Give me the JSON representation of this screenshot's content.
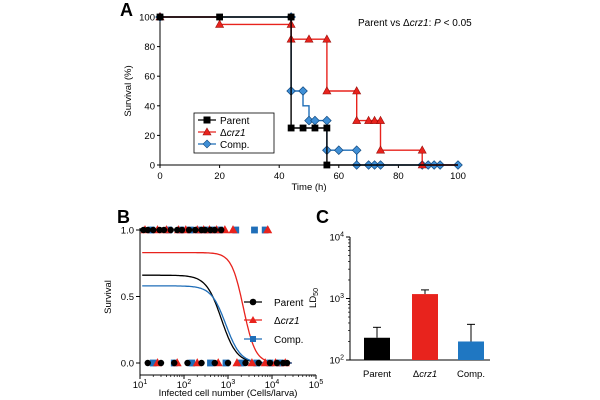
{
  "colors": {
    "parent": "#000000",
    "dcrz1": "#e8231d",
    "comp": "#1f6eb8",
    "comp_bar": "#1f77c2"
  },
  "chart_data": [
    {
      "panel": "A",
      "type": "line",
      "step": true,
      "title": "Parent vs Δcrz1: P < 0.05",
      "annotation": {
        "prefix": "Parent vs Δ",
        "italic": "crz1",
        "mid": ": ",
        "pitalic": "P",
        "suffix": " < 0.05"
      },
      "xlabel": "Time (h)",
      "ylabel": "Survival (%)",
      "xlim": [
        0,
        100
      ],
      "ylim": [
        0,
        100
      ],
      "xticks": [
        0,
        20,
        40,
        60,
        80,
        100
      ],
      "yticks": [
        0,
        20,
        40,
        60,
        80,
        100
      ],
      "legend_position": "lower-left",
      "series": [
        {
          "name": "Parent",
          "key": "parent",
          "marker": "square",
          "steps": [
            [
              0,
              100
            ],
            [
              44,
              100
            ],
            [
              44,
              25
            ],
            [
              56,
              25
            ],
            [
              56,
              0
            ],
            [
              100,
              0
            ]
          ],
          "points": [
            [
              0,
              100
            ],
            [
              20,
              100
            ],
            [
              44,
              100
            ],
            [
              44,
              25
            ],
            [
              48,
              25
            ],
            [
              52,
              25
            ],
            [
              56,
              25
            ],
            [
              56,
              0
            ]
          ]
        },
        {
          "name": "Δcrz1",
          "prefix": "Δ",
          "italic": "crz1",
          "key": "dcrz1",
          "marker": "triangle",
          "steps": [
            [
              0,
              100
            ],
            [
              20,
              100
            ],
            [
              20,
              95
            ],
            [
              44,
              95
            ],
            [
              44,
              85
            ],
            [
              56,
              85
            ],
            [
              56,
              50
            ],
            [
              66,
              50
            ],
            [
              66,
              30
            ],
            [
              74,
              30
            ],
            [
              74,
              10
            ],
            [
              88,
              10
            ],
            [
              88,
              0
            ],
            [
              100,
              0
            ]
          ],
          "points": [
            [
              0,
              100
            ],
            [
              20,
              95
            ],
            [
              44,
              95
            ],
            [
              44,
              85
            ],
            [
              50,
              85
            ],
            [
              56,
              85
            ],
            [
              56,
              50
            ],
            [
              66,
              50
            ],
            [
              66,
              30
            ],
            [
              70,
              30
            ],
            [
              72,
              30
            ],
            [
              74,
              30
            ],
            [
              74,
              10
            ],
            [
              88,
              10
            ],
            [
              88,
              0
            ]
          ]
        },
        {
          "name": "Comp.",
          "key": "comp",
          "marker": "diamond",
          "steps": [
            [
              0,
              100
            ],
            [
              44,
              100
            ],
            [
              44,
              50
            ],
            [
              48,
              50
            ],
            [
              48,
              40
            ],
            [
              50,
              40
            ],
            [
              50,
              30
            ],
            [
              56,
              30
            ],
            [
              56,
              10
            ],
            [
              66,
              10
            ],
            [
              66,
              0
            ],
            [
              100,
              0
            ]
          ],
          "points": [
            [
              0,
              100
            ],
            [
              44,
              100
            ],
            [
              44,
              50
            ],
            [
              48,
              50
            ],
            [
              50,
              30
            ],
            [
              52,
              30
            ],
            [
              56,
              30
            ],
            [
              56,
              10
            ],
            [
              60,
              10
            ],
            [
              66,
              10
            ],
            [
              66,
              0
            ],
            [
              70,
              0
            ],
            [
              72,
              0
            ],
            [
              74,
              0
            ],
            [
              88,
              0
            ],
            [
              90,
              0
            ],
            [
              92,
              0
            ],
            [
              94,
              0
            ],
            [
              100,
              0
            ]
          ]
        }
      ]
    },
    {
      "panel": "B",
      "type": "scatter",
      "xlabel": "Infected cell number (Cells/larva)",
      "ylabel": "Survival",
      "xscale": "log",
      "xlim_log10": [
        1,
        5
      ],
      "ylim": [
        0,
        1.0
      ],
      "yticks": [
        0,
        0.5,
        1.0
      ],
      "ytick_labels": [
        "0.0",
        "0.5",
        "1.0"
      ],
      "xtick_labels": [
        {
          "base": "10",
          "exp": "1"
        },
        {
          "base": "10",
          "exp": "2"
        },
        {
          "base": "10",
          "exp": "3"
        },
        {
          "base": "10",
          "exp": "4"
        },
        {
          "base": "10",
          "exp": "5"
        }
      ],
      "legend_position": "right",
      "series": [
        {
          "name": "Parent",
          "key": "parent",
          "marker": "circle",
          "curve": {
            "top": 0.66,
            "log10_ld50": 2.85,
            "slope": 2.5
          },
          "x_survived": [
            12,
            15,
            20,
            28,
            35,
            50,
            70,
            90,
            130,
            180,
            250,
            300,
            400,
            500,
            700
          ],
          "x_dead": [
            15,
            30,
            60,
            120,
            250,
            500,
            1000,
            2500,
            5000,
            9000,
            13000,
            18000,
            22000
          ]
        },
        {
          "name": "Δcrz1",
          "prefix": "Δ",
          "italic": "crz1",
          "key": "dcrz1",
          "marker": "triangle",
          "curve": {
            "top": 0.83,
            "log10_ld50": 3.35,
            "slope": 3.2
          },
          "x_survived": [
            13,
            25,
            40,
            75,
            110,
            200,
            280,
            380,
            550,
            850,
            1300,
            8000
          ],
          "x_dead": [
            25,
            70,
            200,
            600,
            1600,
            3500,
            7000,
            12000,
            20000
          ]
        },
        {
          "name": "Comp.",
          "key": "comp",
          "marker": "square",
          "curve": {
            "top": 0.58,
            "log10_ld50": 2.95,
            "slope": 2.6
          },
          "x_survived": [
            18,
            45,
            85,
            140,
            220,
            320,
            450,
            650,
            1500,
            4000,
            7000
          ],
          "x_dead": [
            20,
            60,
            150,
            400,
            900,
            2000,
            4500,
            9000,
            15000
          ]
        }
      ]
    },
    {
      "panel": "C",
      "type": "bar",
      "ylabel": {
        "base": "LD",
        "sub": "50"
      },
      "yscale": "log",
      "ylim_log10": [
        2,
        4
      ],
      "ytick_labels": [
        {
          "base": "10",
          "exp": "2"
        },
        {
          "base": "10",
          "exp": "3"
        },
        {
          "base": "10",
          "exp": "4"
        }
      ],
      "categories": [
        {
          "label": "Parent",
          "key": "parent"
        },
        {
          "label": "Δcrz1",
          "prefix": "Δ",
          "italic": "crz1",
          "key": "dcrz1"
        },
        {
          "label": "Comp.",
          "key": "comp_bar"
        }
      ],
      "values": [
        230,
        1180,
        200
      ],
      "errors": [
        340,
        1380,
        380
      ]
    }
  ]
}
